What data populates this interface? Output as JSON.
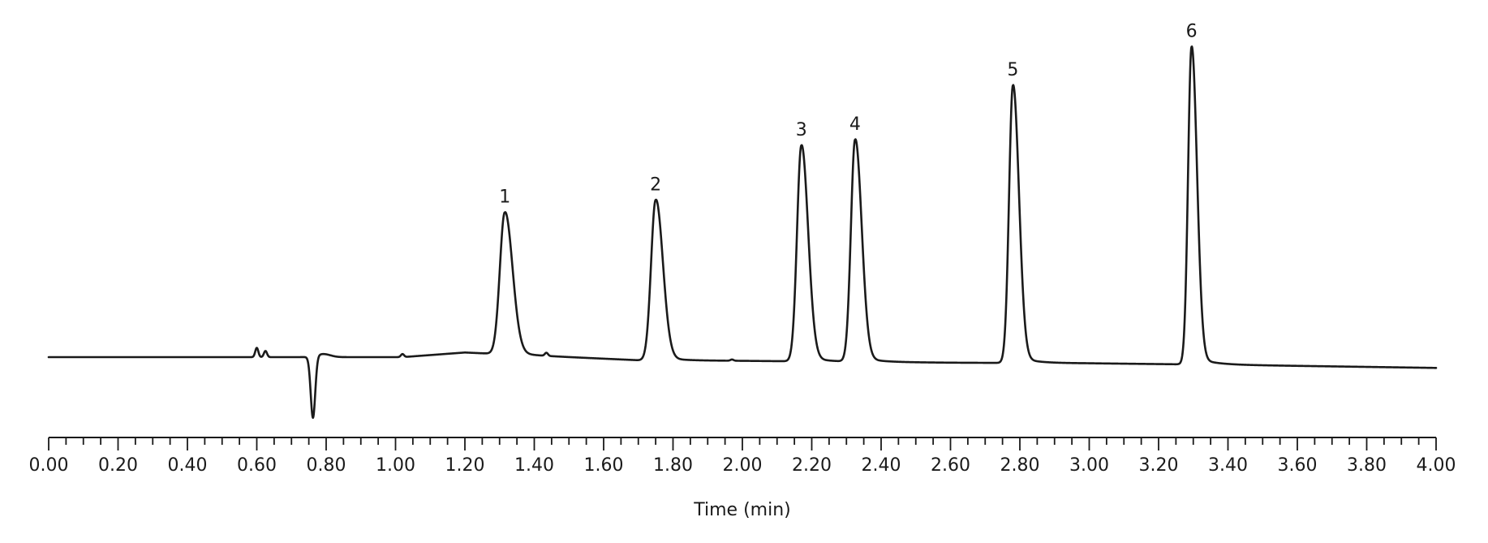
{
  "chart_data": {
    "type": "line",
    "title": "",
    "xlabel": "Time (min)",
    "ylabel": "",
    "xlim": [
      0,
      4
    ],
    "x_ticks": [
      "0.00",
      "0.20",
      "0.40",
      "0.60",
      "0.80",
      "1.00",
      "1.20",
      "1.40",
      "1.60",
      "1.80",
      "2.00",
      "2.20",
      "2.40",
      "2.60",
      "2.80",
      "3.00",
      "3.20",
      "3.40",
      "3.60",
      "3.80",
      "4.00"
    ],
    "x_minor_step": 0.05,
    "y_axis_visible": false,
    "grid": false,
    "line_color": "#1a1a1a",
    "baseline": [
      {
        "t": 0.0,
        "y": 0.0
      },
      {
        "t": 0.6,
        "y": 0.0
      },
      {
        "t": 0.72,
        "y": 0.0
      },
      {
        "t": 1.02,
        "y": 0.0
      },
      {
        "t": 1.2,
        "y": 0.015
      },
      {
        "t": 1.7,
        "y": -0.01
      },
      {
        "t": 2.0,
        "y": -0.012
      },
      {
        "t": 2.6,
        "y": -0.018
      },
      {
        "t": 3.0,
        "y": -0.02
      },
      {
        "t": 3.4,
        "y": -0.025
      },
      {
        "t": 4.0,
        "y": -0.035
      }
    ],
    "peaks": [
      {
        "label": "1",
        "time": 1.315,
        "height": 0.46
      },
      {
        "label": "2",
        "time": 1.75,
        "height": 0.52
      },
      {
        "label": "3",
        "time": 2.17,
        "height": 0.7
      },
      {
        "label": "4",
        "time": 2.325,
        "height": 0.72
      },
      {
        "label": "5",
        "time": 2.78,
        "height": 0.9
      },
      {
        "label": "6",
        "time": 3.295,
        "height": 1.03
      }
    ],
    "artifacts": [
      {
        "time": 0.6,
        "height": 0.03
      },
      {
        "time": 0.625,
        "height": 0.02
      },
      {
        "time": 0.762,
        "height": -0.2
      },
      {
        "time": 1.02,
        "height": 0.01
      },
      {
        "time": 1.435,
        "height": 0.01
      },
      {
        "time": 1.97,
        "height": 0.004
      }
    ]
  }
}
